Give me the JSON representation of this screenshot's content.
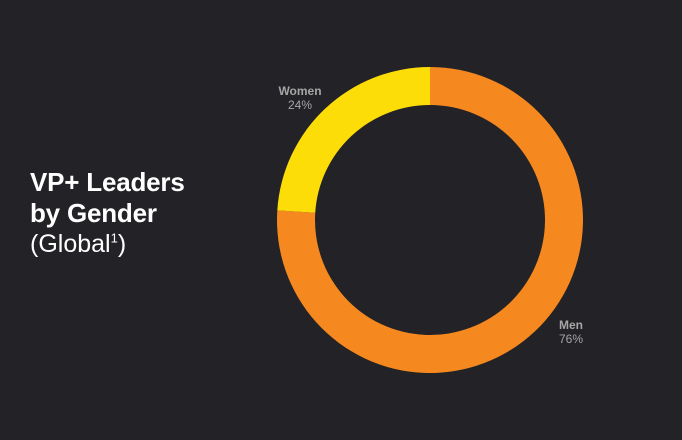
{
  "title": {
    "line1": "VP+ Leaders",
    "line2": "by Gender",
    "subtitle": "(Global",
    "footnote": "1",
    "subtitle_end": ")"
  },
  "chart_data": {
    "type": "pie",
    "variant": "donut",
    "slices": [
      {
        "label": "Men",
        "value": 76,
        "display": "76%",
        "color": "#f5891f"
      },
      {
        "label": "Women",
        "value": 24,
        "display": "24%",
        "color": "#fddd08"
      }
    ]
  }
}
